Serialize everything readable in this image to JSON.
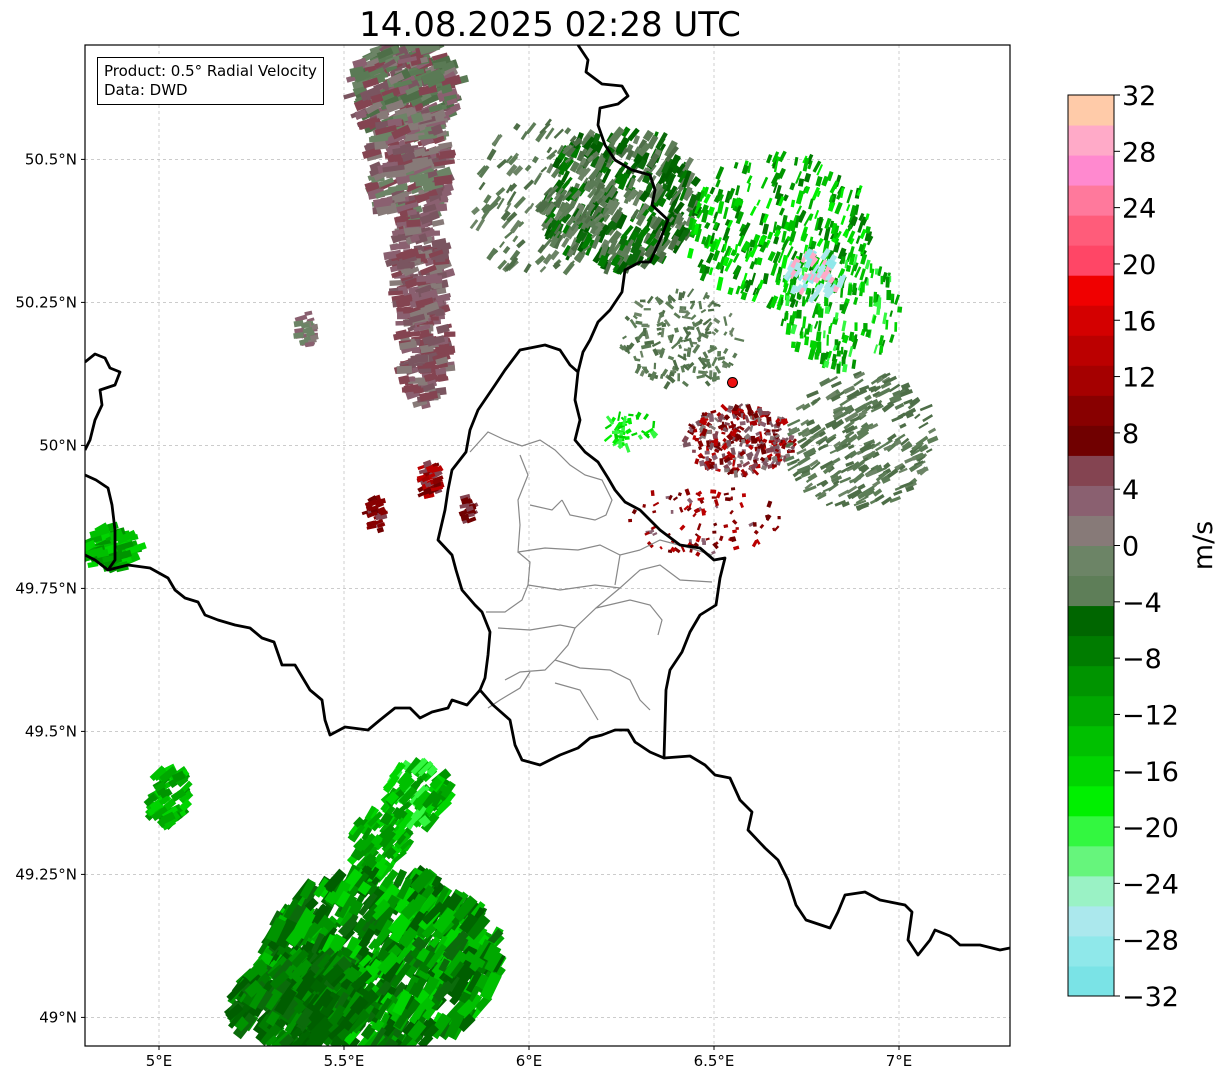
{
  "title": "14.08.2025 02:28 UTC",
  "info": {
    "product_line": "Product: 0.5° Radial Velocity",
    "data_line": "Data: DWD"
  },
  "map": {
    "lon_range": [
      4.8,
      7.3
    ],
    "lat_range": [
      48.95,
      50.7
    ],
    "x_ticks": [
      {
        "value": 5.0,
        "label": "5°E"
      },
      {
        "value": 5.5,
        "label": "5.5°E"
      },
      {
        "value": 6.0,
        "label": "6°E"
      },
      {
        "value": 6.5,
        "label": "6.5°E"
      },
      {
        "value": 7.0,
        "label": "7°E"
      }
    ],
    "y_ticks": [
      {
        "value": 50.5,
        "label": "50.5°N"
      },
      {
        "value": 50.25,
        "label": "50.25°N"
      },
      {
        "value": 50.0,
        "label": "50°N"
      },
      {
        "value": 49.75,
        "label": "49.75°N"
      },
      {
        "value": 49.5,
        "label": "49.5°N"
      },
      {
        "value": 49.25,
        "label": "49.25°N"
      },
      {
        "value": 49.0,
        "label": "49°N"
      }
    ],
    "radar_site": {
      "lon": 6.55,
      "lat": 50.11
    }
  },
  "colorbar": {
    "label": "m/s",
    "range": [
      -32,
      32
    ],
    "ticks": [
      {
        "value": 32,
        "label": "32"
      },
      {
        "value": 28,
        "label": "28"
      },
      {
        "value": 24,
        "label": "24"
      },
      {
        "value": 20,
        "label": "20"
      },
      {
        "value": 16,
        "label": "16"
      },
      {
        "value": 12,
        "label": "12"
      },
      {
        "value": 8,
        "label": "8"
      },
      {
        "value": 4,
        "label": "4"
      },
      {
        "value": 0,
        "label": "0"
      },
      {
        "value": -4,
        "label": "−4"
      },
      {
        "value": -8,
        "label": "−8"
      },
      {
        "value": -12,
        "label": "−12"
      },
      {
        "value": -16,
        "label": "−16"
      },
      {
        "value": -20,
        "label": "−20"
      },
      {
        "value": -24,
        "label": "−24"
      },
      {
        "value": -28,
        "label": "−28"
      },
      {
        "value": -32,
        "label": "−32"
      }
    ],
    "colors": [
      "#7ae3e6",
      "#8fe8ea",
      "#abe8ed",
      "#9af2c5",
      "#66f57c",
      "#33f740",
      "#00f000",
      "#00d500",
      "#00c000",
      "#00a800",
      "#009400",
      "#007c00",
      "#006600",
      "#5e7e58",
      "#6c8466",
      "#877a78",
      "#8a6070",
      "#844451",
      "#700000",
      "#880000",
      "#a50000",
      "#bb0000",
      "#d40000",
      "#f00000",
      "#ff4666",
      "#ff5c7a",
      "#ff799c",
      "#ff89cf",
      "#ffaac8",
      "#ffcba9"
    ]
  }
}
